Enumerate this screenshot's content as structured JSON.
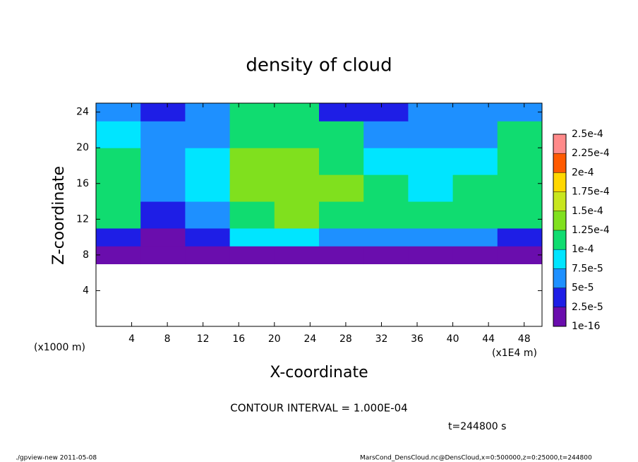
{
  "chart_data": {
    "type": "heatmap",
    "title": "density of cloud",
    "x_label": "X-coordinate",
    "y_label": "Z-coordinate",
    "x_unit_label": "(x1E4 m)",
    "y_unit_label": "(x1000 m)",
    "contour_note": "CONTOUR INTERVAL = 1.000E-04",
    "time_label": "t=244800 s",
    "footer_left": "./gpview-new  2011-05-08",
    "footer_right": "MarsCond_DensCloud.nc@DensCloud,x=0:500000,z=0:25000,t=244800",
    "xlim": [
      0,
      50
    ],
    "ylim": [
      0,
      25
    ],
    "xticks": [
      4,
      8,
      12,
      16,
      20,
      24,
      28,
      32,
      36,
      40,
      44,
      48
    ],
    "yticks": [
      4,
      8,
      12,
      16,
      20,
      24
    ],
    "x_edges": [
      0,
      5,
      10,
      15,
      20,
      25,
      30,
      35,
      40,
      45,
      50
    ],
    "y_edges": [
      0,
      7,
      9,
      11,
      14,
      17,
      20,
      23,
      25
    ],
    "values": [
      [
        null,
        null,
        null,
        null,
        null,
        null,
        null,
        null,
        null,
        null
      ],
      [
        1e-05,
        1e-05,
        1e-05,
        1e-05,
        1e-05,
        1e-05,
        1e-05,
        1e-05,
        1e-05,
        1e-05
      ],
      [
        4e-05,
        2e-05,
        3e-05,
        8e-05,
        8e-05,
        6e-05,
        6e-05,
        7e-05,
        7e-05,
        4e-05
      ],
      [
        0.00011,
        3e-05,
        6e-05,
        0.00012,
        0.00014,
        0.00012,
        0.00011,
        0.00011,
        0.00011,
        0.00011
      ],
      [
        0.00012,
        5e-05,
        8e-05,
        0.00013,
        0.00014,
        0.00013,
        0.00012,
        9e-05,
        0.00011,
        0.00012
      ],
      [
        0.00011,
        6e-05,
        9e-05,
        0.00013,
        0.00013,
        0.00012,
        8e-05,
        9e-05,
        8e-05,
        0.00012
      ],
      [
        9e-05,
        7e-05,
        6e-05,
        0.00012,
        0.00012,
        0.00011,
        6e-05,
        5e-05,
        6e-05,
        0.0001
      ],
      [
        5e-05,
        4e-05,
        5e-05,
        0.0001,
        0.00011,
        4e-05,
        4e-05,
        5e-05,
        5e-05,
        5e-05
      ]
    ],
    "levels": [
      {
        "value": 1e-16,
        "label": "1e-16"
      },
      {
        "value": 2.5e-05,
        "label": "2.5e-5"
      },
      {
        "value": 5e-05,
        "label": "5e-5"
      },
      {
        "value": 7.5e-05,
        "label": "7.5e-5"
      },
      {
        "value": 0.0001,
        "label": "1e-4"
      },
      {
        "value": 0.000125,
        "label": "1.25e-4"
      },
      {
        "value": 0.00015,
        "label": "1.5e-4"
      },
      {
        "value": 0.000175,
        "label": "1.75e-4"
      },
      {
        "value": 0.0002,
        "label": "2e-4"
      },
      {
        "value": 0.000225,
        "label": "2.25e-4"
      },
      {
        "value": 0.00025,
        "label": "2.5e-4"
      }
    ],
    "colors": [
      "#6a0dad",
      "#1e1ee6",
      "#1e90ff",
      "#00e5ff",
      "#10dc70",
      "#80e01e",
      "#c8e61e",
      "#ffd700",
      "#ff5a00",
      "#ff8a8a"
    ]
  }
}
